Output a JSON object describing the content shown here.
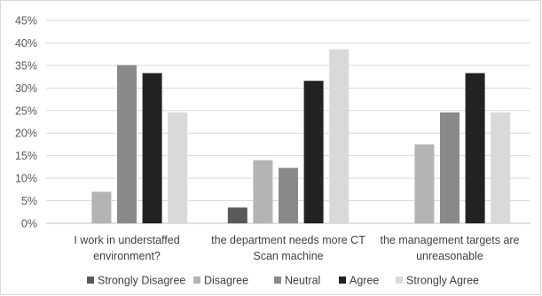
{
  "chart_data": {
    "type": "bar",
    "categories": [
      [
        "I work in understaffed",
        "environment?"
      ],
      [
        "the department needs more CT",
        "Scan machine"
      ],
      [
        "the management targets are",
        "unreasonable"
      ]
    ],
    "series": [
      {
        "name": "Strongly Disagree",
        "color": "#595959",
        "values": [
          0,
          3.5,
          0
        ]
      },
      {
        "name": "Disagree",
        "color": "#b4b4b4",
        "values": [
          7.0,
          14.0,
          17.5
        ]
      },
      {
        "name": "Neutral",
        "color": "#8a8a8a",
        "values": [
          35.1,
          12.3,
          24.6
        ]
      },
      {
        "name": "Agree",
        "color": "#222222",
        "values": [
          33.3,
          31.6,
          33.3
        ]
      },
      {
        "name": "Strongly Agree",
        "color": "#d9d9d9",
        "values": [
          24.6,
          38.6,
          24.6
        ]
      }
    ],
    "yticks": [
      "0%",
      "5%",
      "10%",
      "15%",
      "20%",
      "25%",
      "30%",
      "35%",
      "40%",
      "45%"
    ],
    "ylim": [
      0,
      45
    ],
    "grid": true,
    "legend_position": "bottom",
    "title": "",
    "xlabel": "",
    "ylabel": ""
  }
}
